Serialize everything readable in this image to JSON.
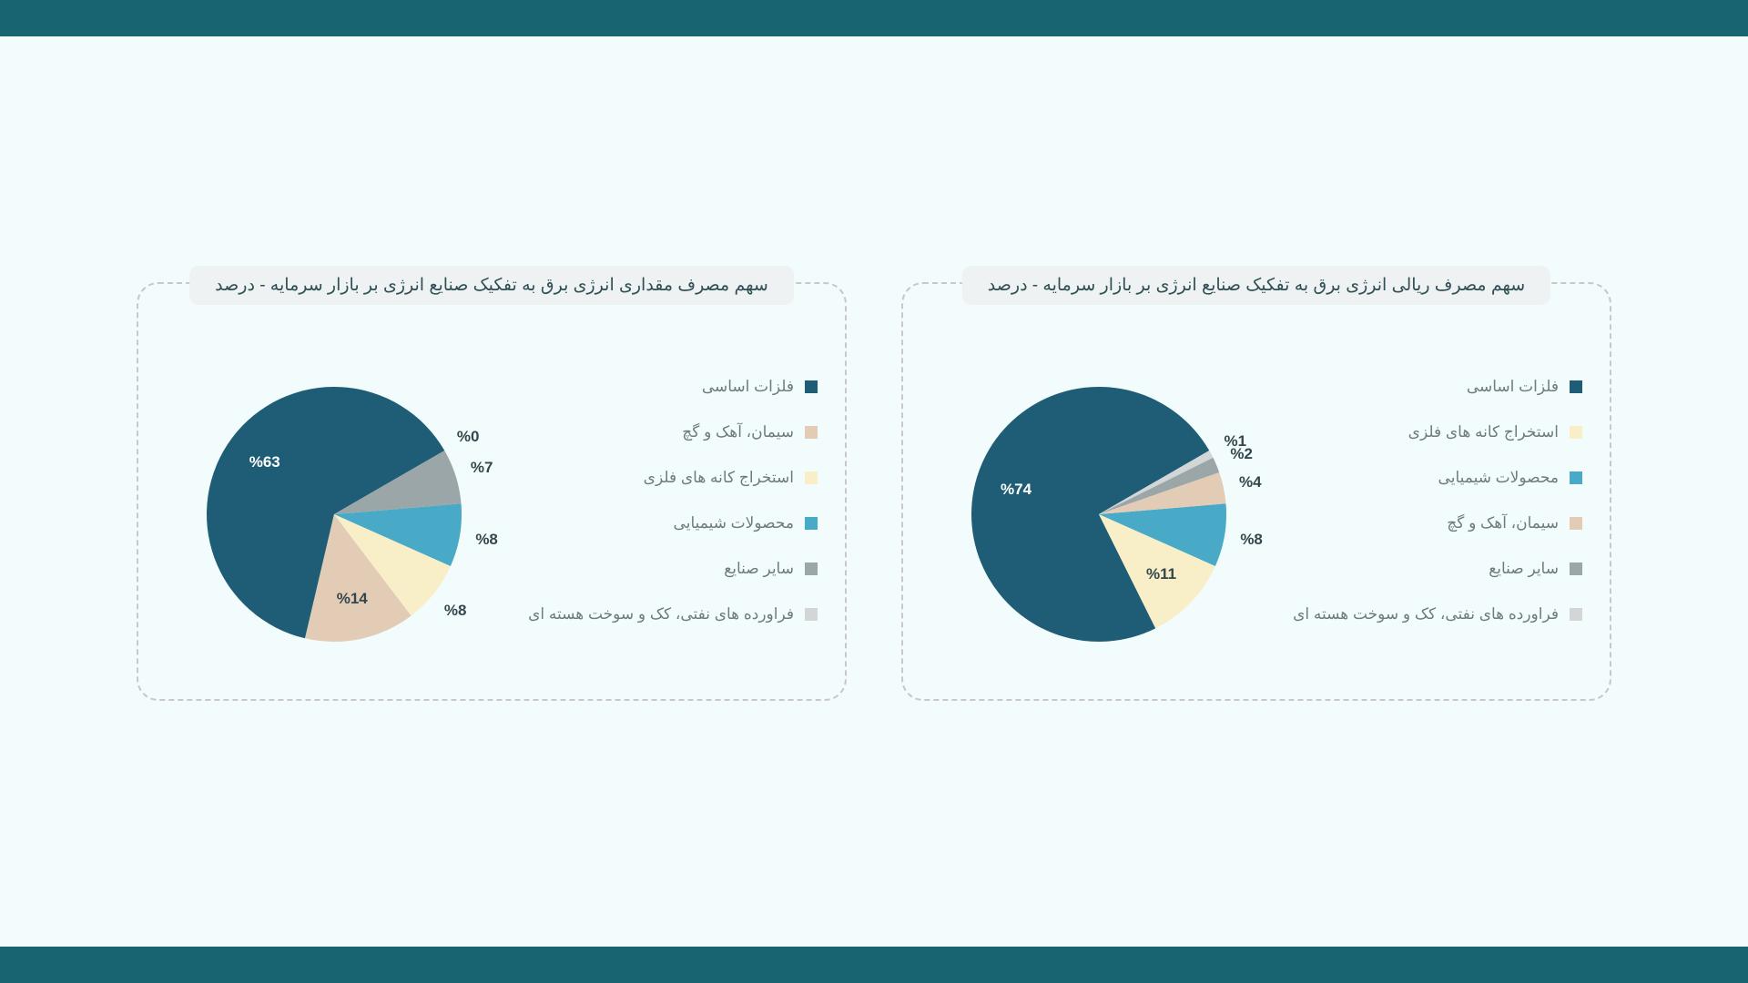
{
  "page": {
    "bar_color": "#186470",
    "background_color": "#f2fcfc"
  },
  "charts": [
    {
      "id": "right",
      "title": "سهم مصرف ریالی انرژی برق به تفکیک صنایع انرژی بر بازار سرمایه - درصد",
      "type": "pie",
      "slices": [
        {
          "label": "فلزات اساسی",
          "value": 74,
          "color": "#1e5d75",
          "label_color": "#ffffff"
        },
        {
          "label": "استخراج کانه های فلزی",
          "value": 11,
          "color": "#f8efc8",
          "label_color": "#34474c"
        },
        {
          "label": "محصولات شیمیایی",
          "value": 8,
          "color": "#48aac7",
          "label_color": "#34474c"
        },
        {
          "label": "سیمان، آهک و گچ",
          "value": 4,
          "color": "#e3ccb5",
          "label_color": "#34474c"
        },
        {
          "label": "سایر صنایع",
          "value": 2,
          "color": "#9aa6a8",
          "label_color": "#34474c"
        },
        {
          "label": "فراورده های نفتی، کک و سوخت هسته ای",
          "value": 1,
          "color": "#d2d6d6",
          "label_color": "#34474c"
        }
      ],
      "start_angle_deg": 60,
      "radius": 140,
      "label_radius_in": 95,
      "label_radius_out": 170
    },
    {
      "id": "left",
      "title": "سهم مصرف مقداری انرژی برق به تفکیک صنایع انرژی بر بازار سرمایه - درصد",
      "type": "pie",
      "slices": [
        {
          "label": "فلزات اساسی",
          "value": 63,
          "color": "#1e5d75",
          "label_color": "#ffffff"
        },
        {
          "label": "سیمان، آهک و گچ",
          "value": 14,
          "color": "#e3ccb5",
          "label_color": "#34474c"
        },
        {
          "label": "استخراج کانه های فلزی",
          "value": 8,
          "color": "#f8efc8",
          "label_color": "#34474c"
        },
        {
          "label": "محصولات شیمیایی",
          "value": 8,
          "color": "#48aac7",
          "label_color": "#34474c"
        },
        {
          "label": "سایر صنایع",
          "value": 7,
          "color": "#9aa6a8",
          "label_color": "#34474c"
        },
        {
          "label": "فراورده های نفتی، کک و سوخت هسته ای",
          "value": 0,
          "color": "#d2d6d6",
          "label_color": "#34474c"
        }
      ],
      "start_angle_deg": 60,
      "radius": 140,
      "label_radius_in": 95,
      "label_radius_out": 170
    }
  ],
  "style": {
    "card_border_color": "#c8c8c8",
    "title_pill_bg": "#eef2f2",
    "title_pill_color": "#2f4f55",
    "legend_text_color": "#6e7b7e",
    "label_font_size": 17,
    "title_font_size": 19
  }
}
